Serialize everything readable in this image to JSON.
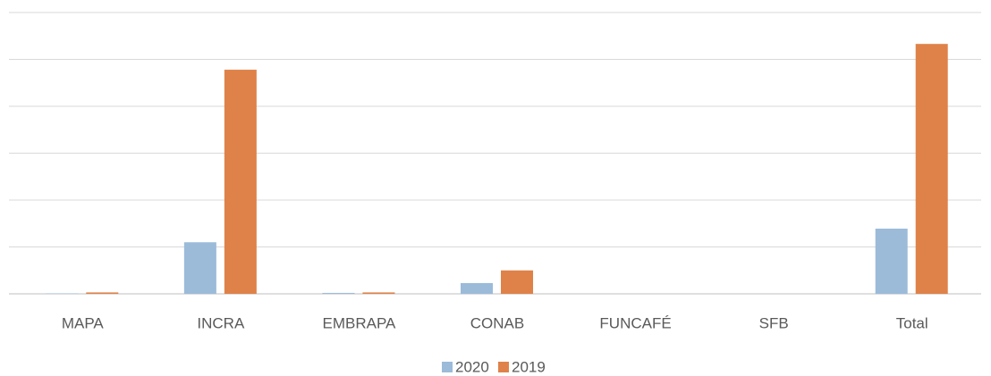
{
  "chart_data": {
    "type": "bar",
    "categories": [
      "MAPA",
      "INCRA",
      "EMBRAPA",
      "CONAB",
      "FUNCAFÉ",
      "SFB",
      "Total"
    ],
    "series": [
      {
        "name": "2020",
        "color": "#9bbbd9",
        "values": [
          0.01,
          1.1,
          0.02,
          0.23,
          0,
          0,
          1.39
        ]
      },
      {
        "name": "2019",
        "color": "#df8249",
        "values": [
          0.03,
          4.78,
          0.03,
          0.5,
          0,
          0,
          5.33
        ]
      }
    ],
    "ylim": [
      0,
      6
    ],
    "yticks": [
      0,
      1,
      2,
      3,
      4,
      5,
      6
    ],
    "grid": true,
    "legend": "bottom"
  }
}
